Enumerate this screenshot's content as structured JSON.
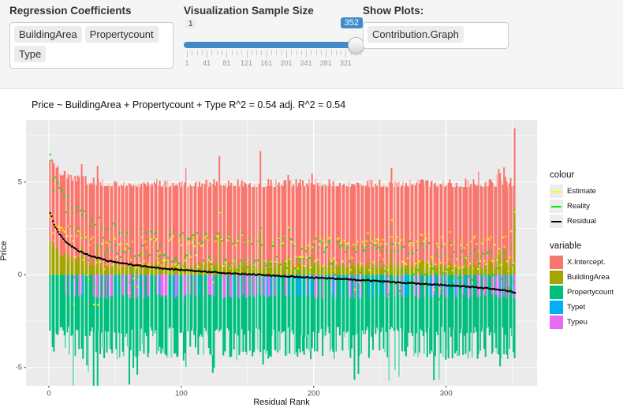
{
  "controls": {
    "regression_coefficients": {
      "label": "Regression Coefficients",
      "tags": [
        "BuildingArea",
        "Propertycount",
        "Type"
      ]
    },
    "sample_size": {
      "label": "Visualization Sample Size",
      "min_label": "1",
      "value": "352",
      "range_min": 1,
      "range_max": 352,
      "tick_labels": [
        "1",
        "41",
        "81",
        "121",
        "161",
        "201",
        "241",
        "281",
        "321"
      ],
      "tick_values": [
        1,
        41,
        81,
        121,
        161,
        201,
        241,
        281,
        321
      ],
      "minor_step": 10,
      "accent_color": "#428bca"
    },
    "show_plots": {
      "label": "Show Plots:",
      "tags": [
        "Contribution.Graph"
      ]
    }
  },
  "chart_data": {
    "type": "bar",
    "title": "Price ~ BuildingArea + Propertycount + Type R^2 = 0.54 adj. R^2 = 0.54",
    "xlabel": "Residual Rank",
    "ylabel": "Price",
    "x_ticks": [
      0,
      100,
      200,
      300
    ],
    "x_minor_ticks": [
      50,
      150,
      250,
      350
    ],
    "y_ticks": [
      5,
      0,
      -5
    ],
    "y_minor_ticks": [
      7.5,
      2.5,
      -2.5
    ],
    "xlim": [
      -17,
      369
    ],
    "ylim": [
      -6.0,
      8.4
    ],
    "n_bars": 352,
    "panel_bg": "#EBEBEB",
    "grid_color": "#FFFFFF",
    "tick_text_color": "#4d4d4d",
    "legend_colour": {
      "title": "colour",
      "items": [
        {
          "label": "Estimate",
          "color": "#FFFF00"
        },
        {
          "label": "Reality",
          "color": "#00EE00"
        },
        {
          "label": "Residual",
          "color": "#000000"
        }
      ]
    },
    "legend_variable": {
      "title": "variable",
      "items": [
        {
          "label": "X.Intercept.",
          "color": "#F8766D"
        },
        {
          "label": "BuildingArea",
          "color": "#A3A500"
        },
        {
          "label": "Propertycount",
          "color": "#00BF7D"
        },
        {
          "label": "Typet",
          "color": "#00B0F6"
        },
        {
          "label": "Typeu",
          "color": "#E76BF3"
        }
      ]
    },
    "model": {
      "seed": 20,
      "intercept": 4.35,
      "type_level": -1.05,
      "type_jitter": 0.25,
      "type_start_rank": 11,
      "type_probability": 0.46,
      "building_area": {
        "base": 0.38,
        "left_boost": 1.3,
        "left_decay": 13,
        "jitter": 0.45,
        "spike_prob": 0.025,
        "spike_min": 0.5,
        "spike_extra": 1.4,
        "tail_start": 330,
        "tail_gain": 1.5,
        "last_value": 3.55
      },
      "propertycount": {
        "base": -2.8,
        "jitter": 0.55,
        "spike_prob_left": 0.16,
        "spike_prob_mid": 0.07,
        "spike_prob_right": 0.1,
        "spike_min": 0.5,
        "spike_extra_left": 1.9,
        "spike_extra": 1.1,
        "deep_zone": [
          34,
          46
        ],
        "deep_extra": 0.8
      },
      "residual_anchors": [
        [
          1,
          3.35
        ],
        [
          4,
          2.7
        ],
        [
          8,
          2.2
        ],
        [
          14,
          1.7
        ],
        [
          22,
          1.3
        ],
        [
          32,
          1.0
        ],
        [
          45,
          0.75
        ],
        [
          62,
          0.55
        ],
        [
          85,
          0.35
        ],
        [
          115,
          0.18
        ],
        [
          145,
          0.05
        ],
        [
          180,
          -0.08
        ],
        [
          215,
          -0.2
        ],
        [
          250,
          -0.35
        ],
        [
          285,
          -0.5
        ],
        [
          315,
          -0.63
        ],
        [
          338,
          -0.78
        ],
        [
          348,
          -0.88
        ],
        [
          352,
          -0.97
        ]
      ],
      "estimate_dot_color": "#F7E400",
      "reality_dot_color": "#2BD42B",
      "residual_dot_color": "#000000",
      "stripe_percent": 27
    }
  }
}
